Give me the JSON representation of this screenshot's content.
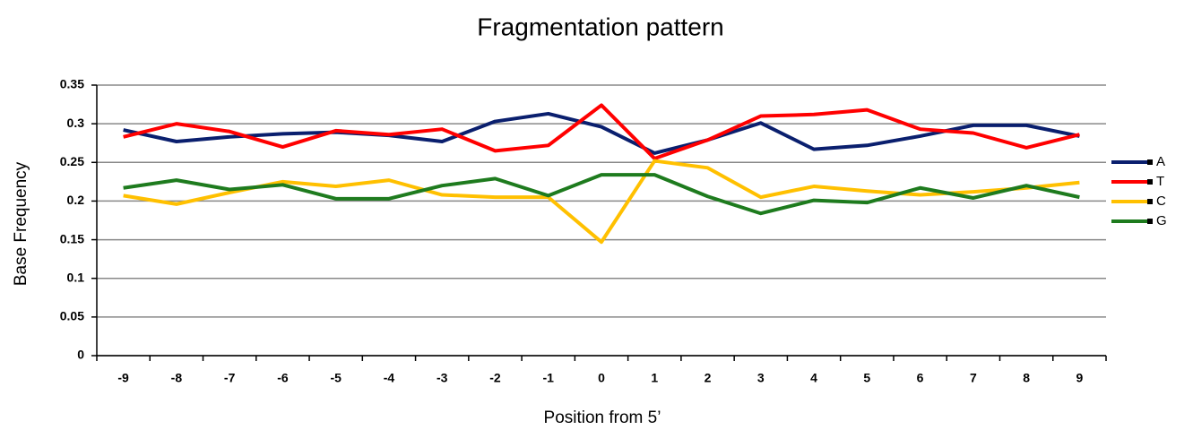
{
  "chart_data": {
    "type": "line",
    "title": "Fragmentation pattern",
    "x_label": "Position from 5’",
    "y_label": "Base Frequency",
    "categories": [
      "-9",
      "-8",
      "-7",
      "-6",
      "-5",
      "-4",
      "-3",
      "-2",
      "-1",
      "0",
      "1",
      "2",
      "3",
      "4",
      "5",
      "6",
      "7",
      "8",
      "9"
    ],
    "series": [
      {
        "name": "A",
        "color": "#0a1f6e",
        "values": [
          0.292,
          0.277,
          0.283,
          0.287,
          0.289,
          0.285,
          0.277,
          0.303,
          0.313,
          0.296,
          0.262,
          0.279,
          0.301,
          0.267,
          0.272,
          0.284,
          0.298,
          0.298,
          0.284
        ]
      },
      {
        "name": "T",
        "color": "#ff0000",
        "values": [
          0.283,
          0.3,
          0.29,
          0.27,
          0.291,
          0.286,
          0.293,
          0.265,
          0.272,
          0.324,
          0.255,
          0.279,
          0.31,
          0.312,
          0.318,
          0.293,
          0.288,
          0.269,
          0.286
        ]
      },
      {
        "name": "C",
        "color": "#ffc000",
        "values": [
          0.207,
          0.196,
          0.211,
          0.225,
          0.219,
          0.227,
          0.208,
          0.205,
          0.205,
          0.147,
          0.252,
          0.243,
          0.205,
          0.219,
          0.213,
          0.208,
          0.212,
          0.217,
          0.224
        ]
      },
      {
        "name": "G",
        "color": "#1e7b1e",
        "values": [
          0.217,
          0.227,
          0.215,
          0.221,
          0.203,
          0.203,
          0.22,
          0.229,
          0.207,
          0.234,
          0.234,
          0.206,
          0.184,
          0.201,
          0.198,
          0.217,
          0.204,
          0.22,
          0.205
        ]
      }
    ],
    "ylim": [
      0,
      0.35
    ],
    "yticks": [
      0,
      0.05,
      0.1,
      0.15,
      0.2,
      0.25,
      0.3,
      0.35
    ],
    "grid": true,
    "legend": "right"
  }
}
